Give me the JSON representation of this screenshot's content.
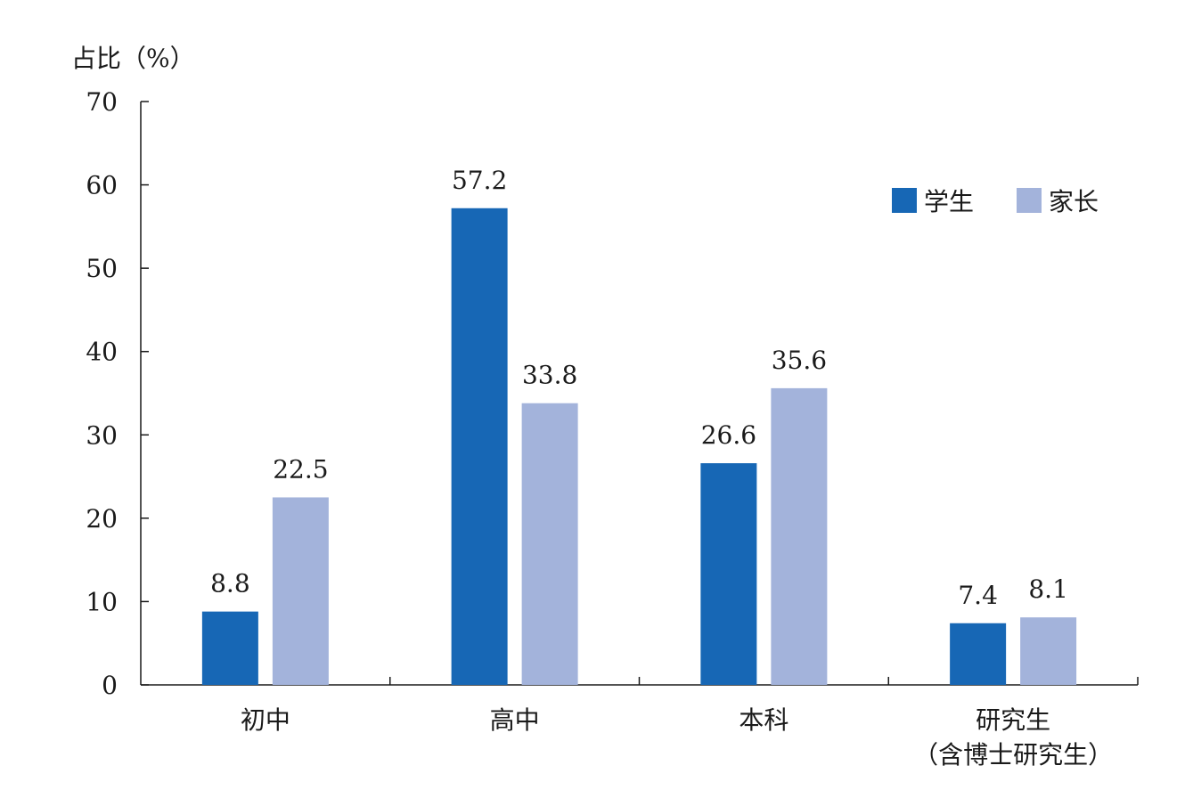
{
  "chart_data": {
    "type": "bar",
    "categories": [
      "初中",
      "高中",
      "本科",
      "研究生\n（含博士研究生）"
    ],
    "series": [
      {
        "name": "学生",
        "color": "#1767b5",
        "values": [
          8.8,
          57.2,
          26.6,
          7.4
        ]
      },
      {
        "name": "家长",
        "color": "#a3b3db",
        "values": [
          22.5,
          33.8,
          35.6,
          8.1
        ]
      }
    ],
    "ylabel": "占比（%）",
    "ylim": [
      0,
      70
    ],
    "yticks": [
      0,
      10,
      20,
      30,
      40,
      50,
      60,
      70
    ],
    "grid": false,
    "legend_position": "top-right"
  }
}
